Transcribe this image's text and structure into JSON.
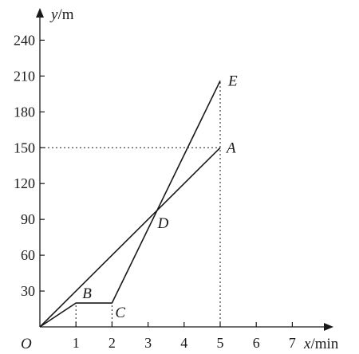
{
  "chart_data": {
    "type": "line",
    "xlabel": {
      "var": "x",
      "unit": "/min"
    },
    "ylabel": {
      "var": "y",
      "unit": "/m"
    },
    "x_ticks": [
      1,
      2,
      3,
      4,
      5,
      6,
      7
    ],
    "y_ticks": [
      30,
      60,
      90,
      120,
      150,
      180,
      210,
      240
    ],
    "origin_label": "O",
    "series": [
      {
        "points": [
          [
            0,
            0
          ],
          [
            5,
            150
          ]
        ]
      },
      {
        "points": [
          [
            0,
            0
          ],
          [
            1,
            20
          ],
          [
            2,
            20
          ],
          [
            5,
            206
          ]
        ]
      }
    ],
    "guides": [
      {
        "points": [
          [
            0,
            150
          ],
          [
            5,
            150
          ]
        ]
      },
      {
        "points": [
          [
            5,
            0
          ],
          [
            5,
            206
          ]
        ]
      },
      {
        "points": [
          [
            1,
            0
          ],
          [
            1,
            20
          ]
        ]
      },
      {
        "points": [
          [
            2,
            0
          ],
          [
            2,
            20
          ]
        ]
      }
    ],
    "labels": [
      {
        "text": "A",
        "x": 5,
        "y": 150
      },
      {
        "text": "B",
        "x": 1,
        "y": 20
      },
      {
        "text": "C",
        "x": 2,
        "y": 20
      },
      {
        "text": "D",
        "x": 3.2,
        "y": 96
      },
      {
        "text": "E",
        "x": 5,
        "y": 206
      }
    ]
  }
}
